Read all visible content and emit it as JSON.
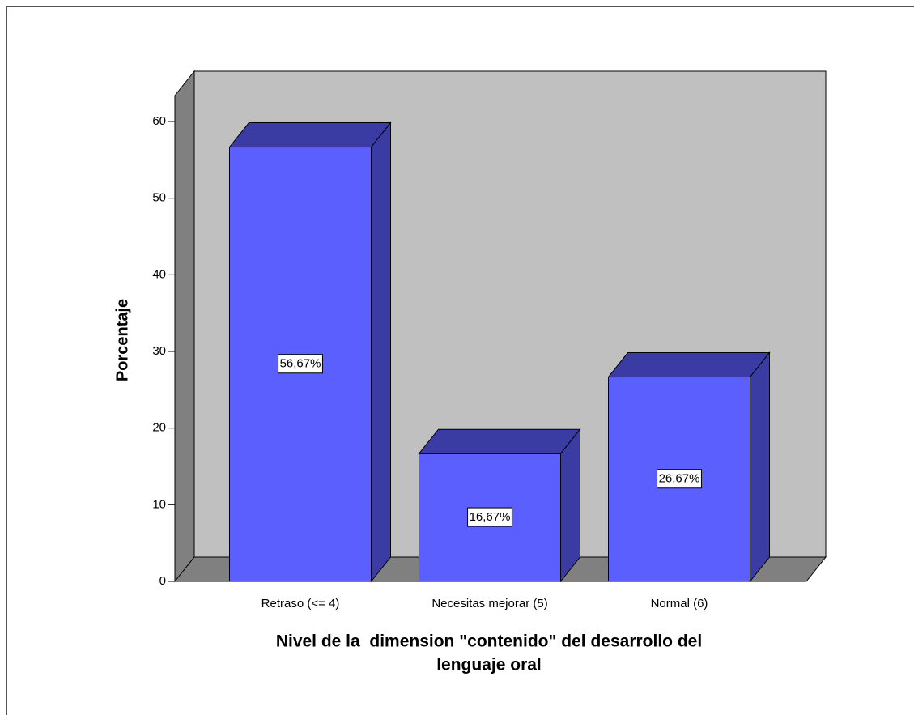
{
  "chart_data": {
    "type": "bar3d",
    "categories": [
      "Retraso (<= 4)",
      "Necesitas mejorar (5)",
      "Normal (6)"
    ],
    "values": [
      56.67,
      16.67,
      26.67
    ],
    "value_labels": [
      "56,67%",
      "16,67%",
      "26,67%"
    ],
    "color": "#5b5ffe",
    "ylim": [
      0,
      60
    ],
    "yticks": [
      0,
      10,
      20,
      30,
      40,
      50,
      60
    ],
    "y_label": "Porcentaje",
    "x_label": [
      "Nivel de la  dimension \"contenido\" del desarrollo del",
      "lenguaje oral"
    ]
  }
}
